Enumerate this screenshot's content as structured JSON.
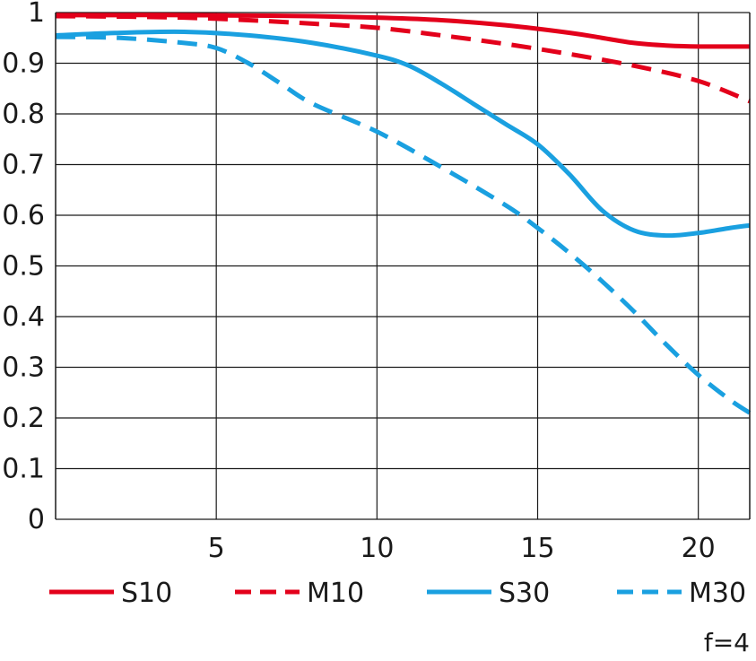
{
  "chart_data": {
    "type": "line",
    "title": "",
    "xlabel": "",
    "ylabel": "",
    "xlim": [
      0,
      21.6
    ],
    "ylim": [
      0,
      1
    ],
    "x_ticks": [
      5,
      10,
      15,
      20
    ],
    "x_tick_labels": [
      "5",
      "10",
      "15",
      "20"
    ],
    "y_ticks": [
      0,
      0.1,
      0.2,
      0.3,
      0.4,
      0.5,
      0.6,
      0.7,
      0.8,
      0.9,
      1
    ],
    "y_tick_labels": [
      "0",
      "0.1",
      "0.2",
      "0.3",
      "0.4",
      "0.5",
      "0.6",
      "0.7",
      "0.8",
      "0.9",
      "1"
    ],
    "grid": true,
    "legend_position": "bottom",
    "annotation": "f=4",
    "series": [
      {
        "name": "S10",
        "color": "#e3001b",
        "dash": "solid",
        "points": [
          [
            0,
            0.995
          ],
          [
            2,
            0.995
          ],
          [
            4,
            0.995
          ],
          [
            6,
            0.994
          ],
          [
            8,
            0.993
          ],
          [
            10,
            0.99
          ],
          [
            12,
            0.985
          ],
          [
            14,
            0.975
          ],
          [
            16,
            0.96
          ],
          [
            17,
            0.95
          ],
          [
            18,
            0.94
          ],
          [
            19,
            0.935
          ],
          [
            20,
            0.933
          ],
          [
            21.6,
            0.933
          ]
        ]
      },
      {
        "name": "M10",
        "color": "#e3001b",
        "dash": "dashed",
        "points": [
          [
            0,
            0.993
          ],
          [
            2,
            0.992
          ],
          [
            4,
            0.99
          ],
          [
            6,
            0.985
          ],
          [
            8,
            0.978
          ],
          [
            10,
            0.97
          ],
          [
            12,
            0.955
          ],
          [
            14,
            0.938
          ],
          [
            16,
            0.918
          ],
          [
            18,
            0.895
          ],
          [
            20,
            0.865
          ],
          [
            21.6,
            0.825
          ]
        ]
      },
      {
        "name": "S30",
        "color": "#1aa0e0",
        "dash": "solid",
        "points": [
          [
            0,
            0.955
          ],
          [
            2,
            0.96
          ],
          [
            4,
            0.962
          ],
          [
            6,
            0.955
          ],
          [
            8,
            0.94
          ],
          [
            10,
            0.915
          ],
          [
            11,
            0.895
          ],
          [
            12,
            0.86
          ],
          [
            13,
            0.82
          ],
          [
            14,
            0.78
          ],
          [
            15,
            0.74
          ],
          [
            16,
            0.68
          ],
          [
            17,
            0.61
          ],
          [
            18,
            0.57
          ],
          [
            19,
            0.56
          ],
          [
            20,
            0.565
          ],
          [
            21,
            0.575
          ],
          [
            21.6,
            0.58
          ]
        ]
      },
      {
        "name": "M30",
        "color": "#1aa0e0",
        "dash": "dashed",
        "points": [
          [
            0,
            0.952
          ],
          [
            2,
            0.95
          ],
          [
            4,
            0.94
          ],
          [
            5,
            0.93
          ],
          [
            6,
            0.9
          ],
          [
            7,
            0.86
          ],
          [
            8,
            0.82
          ],
          [
            10,
            0.765
          ],
          [
            12,
            0.695
          ],
          [
            14,
            0.62
          ],
          [
            15,
            0.575
          ],
          [
            16,
            0.525
          ],
          [
            17,
            0.47
          ],
          [
            18,
            0.41
          ],
          [
            19,
            0.345
          ],
          [
            20,
            0.285
          ],
          [
            21,
            0.235
          ],
          [
            21.6,
            0.21
          ]
        ]
      }
    ]
  }
}
